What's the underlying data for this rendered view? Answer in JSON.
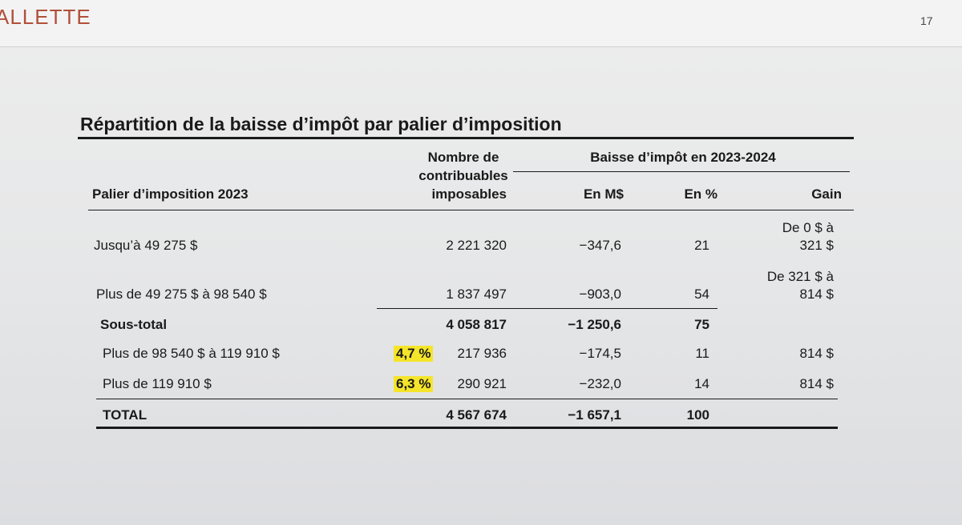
{
  "header": {
    "logo": "ALLETTE",
    "page_number": "17"
  },
  "table": {
    "title": "Répartition de la baisse d’impôt par palier d’imposition",
    "columns": {
      "bracket": "Palier d’imposition 2023",
      "taxpayers": [
        "Nombre de",
        "contribuables",
        "imposables"
      ],
      "group": "Baisse d’impôt en 2023-2024",
      "amount": "En M$",
      "percent": "En %",
      "gain": "Gain"
    },
    "rows": [
      {
        "label": "Jusqu’à 49 275 $",
        "taxpayers": "2 221 320",
        "amount": "−347,6",
        "percent": "21",
        "gain": [
          "De 0 $ à",
          "321 $"
        ]
      },
      {
        "label": "Plus de 49 275 $ à 98 540 $",
        "taxpayers": "1 837 497",
        "amount": "−903,0",
        "percent": "54",
        "gain": [
          "De 321 $ à",
          "814 $"
        ]
      },
      {
        "label": "Sous-total",
        "taxpayers": "4 058 817",
        "amount": "−1 250,6",
        "percent": "75"
      },
      {
        "label": "Plus de 98 540 $ à 119 910 $",
        "note": "4,7 %",
        "taxpayers": "217 936",
        "amount": "−174,5",
        "percent": "11",
        "gain": [
          "814 $"
        ]
      },
      {
        "label": "Plus de 119 910 $",
        "note": "6,3 %",
        "taxpayers": "290 921",
        "amount": "−232,0",
        "percent": "14",
        "gain": [
          "814 $"
        ]
      },
      {
        "label": "TOTAL",
        "taxpayers": "4 567 674",
        "amount": "−1 657,1",
        "percent": "100"
      }
    ]
  }
}
